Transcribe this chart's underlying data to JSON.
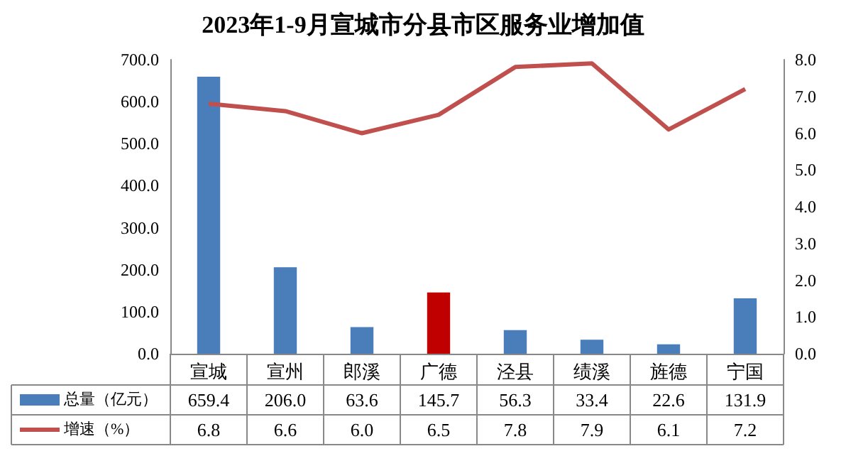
{
  "chart_data": {
    "type": "bar",
    "title": "2023年1-9月宣城市分县市区服务业增加值",
    "categories": [
      "宣城",
      "宣州",
      "郎溪",
      "广德",
      "泾县",
      "绩溪",
      "旌德",
      "宁国"
    ],
    "series": [
      {
        "name": "总量（亿元）",
        "color": "#4a7ebb",
        "colors": [
          "#4a7ebb",
          "#4a7ebb",
          "#4a7ebb",
          "#c00000",
          "#4a7ebb",
          "#4a7ebb",
          "#4a7ebb",
          "#4a7ebb"
        ],
        "values": [
          659.4,
          206.0,
          63.6,
          145.7,
          56.3,
          33.4,
          22.6,
          131.9
        ],
        "value_labels": [
          "659.4",
          "206.0",
          "63.6",
          "145.7",
          "56.3",
          "33.4",
          "22.6",
          "131.9"
        ]
      },
      {
        "name": "增速（%）",
        "type": "line",
        "axis": "y2",
        "color": "#c0504d",
        "values": [
          6.8,
          6.6,
          6.0,
          6.5,
          7.8,
          7.9,
          6.1,
          7.2
        ],
        "value_labels": [
          "6.8",
          "6.6",
          "6.0",
          "6.5",
          "7.8",
          "7.9",
          "6.1",
          "7.2"
        ]
      }
    ],
    "ylim": [
      0,
      700
    ],
    "yticks": [
      {
        "value": 0,
        "label": "0.0"
      },
      {
        "value": 100,
        "label": "100.0"
      },
      {
        "value": 200,
        "label": "200.0"
      },
      {
        "value": 300,
        "label": "300.0"
      },
      {
        "value": 400,
        "label": "400.0"
      },
      {
        "value": 500,
        "label": "500.0"
      },
      {
        "value": 600,
        "label": "600.0"
      },
      {
        "value": 700,
        "label": "700.0"
      }
    ],
    "y2lim": [
      0,
      8
    ],
    "y2ticks": [
      {
        "value": 0,
        "label": "0.0"
      },
      {
        "value": 1,
        "label": "1.0"
      },
      {
        "value": 2,
        "label": "2.0"
      },
      {
        "value": 3,
        "label": "3.0"
      },
      {
        "value": 4,
        "label": "4.0"
      },
      {
        "value": 5,
        "label": "5.0"
      },
      {
        "value": 6,
        "label": "6.0"
      },
      {
        "value": 7,
        "label": "7.0"
      },
      {
        "value": 8,
        "label": "8.0"
      }
    ],
    "grid": false,
    "legend": "bottom left",
    "marker": "none",
    "line_style": "solid"
  }
}
